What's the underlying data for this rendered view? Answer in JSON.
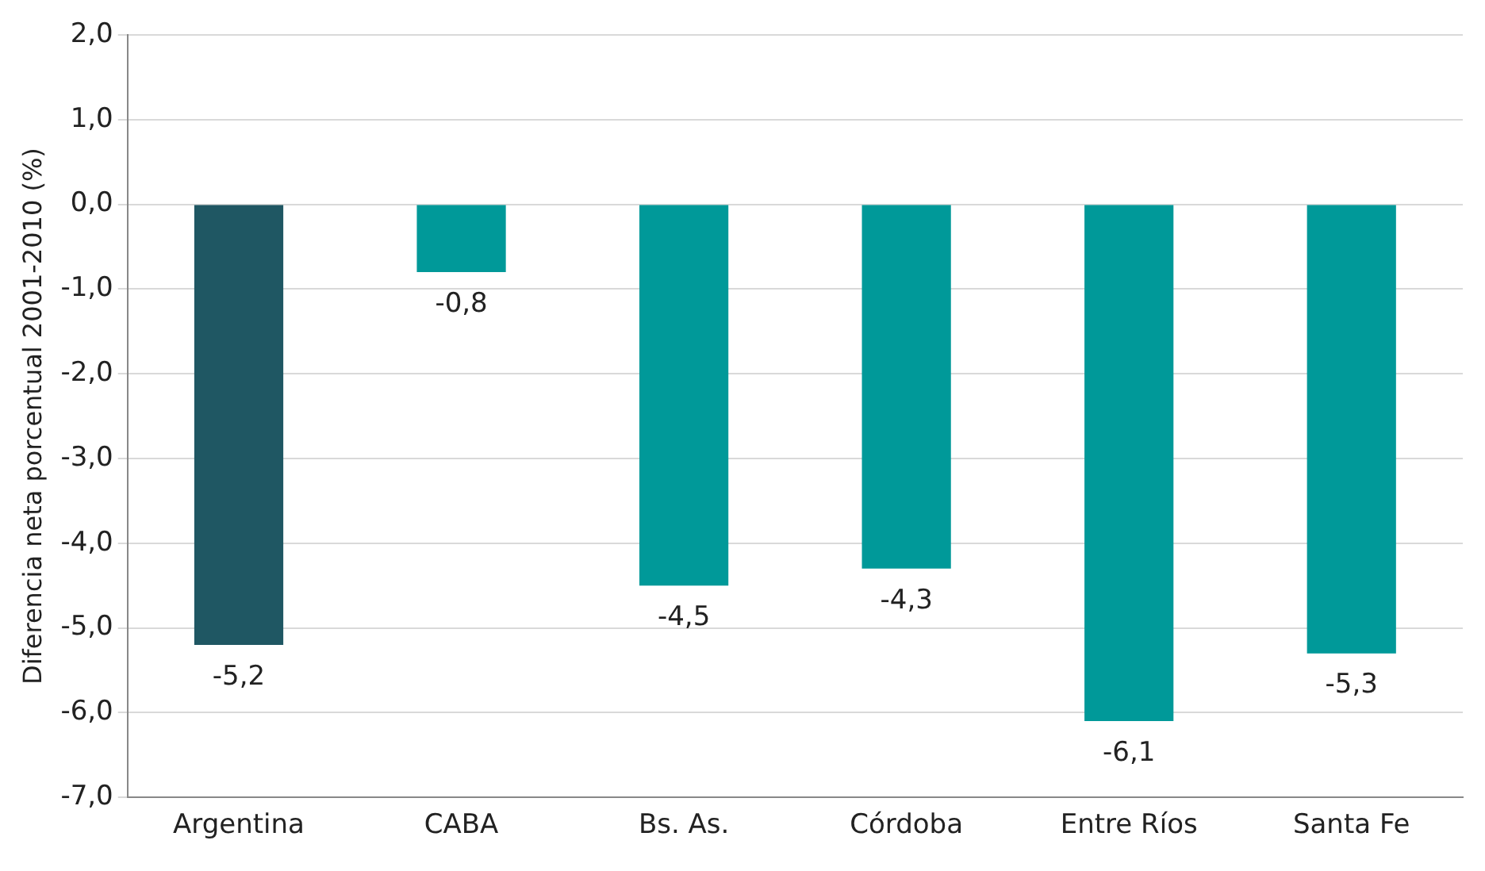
{
  "chart_data": {
    "type": "bar",
    "ylabel": "Diferencia neta porcentual 2001-2010 (%)",
    "categories": [
      "Argentina",
      "CABA",
      "Bs. As.",
      "Córdoba",
      "Entre Ríos",
      "Santa Fe"
    ],
    "values": [
      -5.2,
      -0.8,
      -4.5,
      -4.3,
      -6.1,
      -5.3
    ],
    "colors": [
      "#1f5763",
      "#009999",
      "#009999",
      "#009999",
      "#009999",
      "#009999"
    ],
    "value_labels": [
      "-5,2",
      "-0,8",
      "-4,5",
      "-4,3",
      "-6,1",
      "-5,3"
    ],
    "ylim": [
      -7,
      2
    ],
    "yticks": [
      {
        "value": -7,
        "label": "-7,0"
      },
      {
        "value": -6,
        "label": "-6,0"
      },
      {
        "value": -5,
        "label": "-5,0"
      },
      {
        "value": -4,
        "label": "-4,0"
      },
      {
        "value": -3,
        "label": "-3,0"
      },
      {
        "value": -2,
        "label": "-2,0"
      },
      {
        "value": -1,
        "label": "-1,0"
      },
      {
        "value": 0,
        "label": "0,0"
      },
      {
        "value": 1,
        "label": "1,0"
      },
      {
        "value": 2,
        "label": "2,0"
      }
    ],
    "grid": "y",
    "legend": false
  }
}
